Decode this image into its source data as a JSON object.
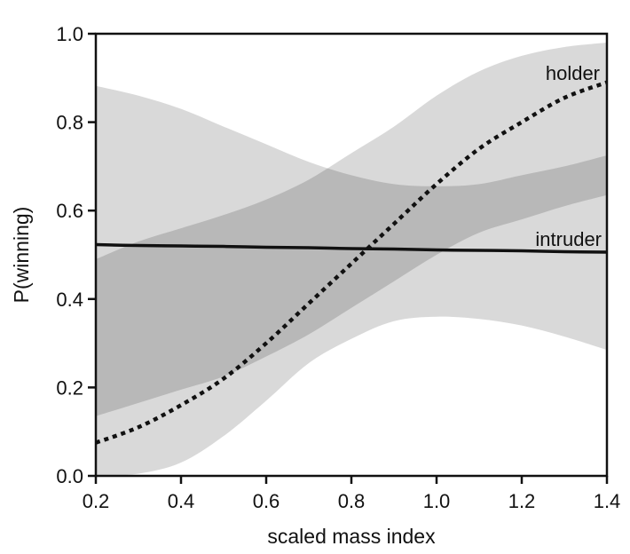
{
  "chart_data": {
    "type": "line",
    "xlabel": "scaled mass index",
    "ylabel": "P(winning)",
    "xlim": [
      0.2,
      1.4
    ],
    "ylim": [
      0.0,
      1.0
    ],
    "xticks": [
      "0.2",
      "0.4",
      "0.6",
      "0.8",
      "1.0",
      "1.2",
      "1.4"
    ],
    "yticks": [
      "0.0",
      "0.2",
      "0.4",
      "0.6",
      "0.8",
      "1.0"
    ],
    "grid": false,
    "band_color": "#d9d9d9",
    "band_overlap_color": "#b3b3b3",
    "line_color": "#111111",
    "series": [
      {
        "name": "holder",
        "style": "dotted",
        "x": [
          0.2,
          0.3,
          0.4,
          0.5,
          0.6,
          0.7,
          0.8,
          0.9,
          1.0,
          1.1,
          1.2,
          1.3,
          1.4
        ],
        "y": [
          0.075,
          0.11,
          0.16,
          0.22,
          0.3,
          0.39,
          0.48,
          0.57,
          0.66,
          0.74,
          0.8,
          0.855,
          0.89
        ],
        "ci_lower": [
          0.0,
          0.005,
          0.03,
          0.09,
          0.17,
          0.255,
          0.31,
          0.35,
          0.36,
          0.355,
          0.34,
          0.315,
          0.285
        ],
        "ci_upper": [
          0.49,
          0.53,
          0.56,
          0.59,
          0.625,
          0.67,
          0.73,
          0.79,
          0.86,
          0.915,
          0.95,
          0.97,
          0.98
        ]
      },
      {
        "name": "intruder",
        "style": "solid",
        "x": [
          0.2,
          0.3,
          0.4,
          0.5,
          0.6,
          0.7,
          0.8,
          0.9,
          1.0,
          1.1,
          1.2,
          1.3,
          1.4
        ],
        "y": [
          0.523,
          0.521,
          0.52,
          0.519,
          0.517,
          0.516,
          0.514,
          0.513,
          0.511,
          0.51,
          0.509,
          0.507,
          0.506
        ],
        "ci_lower": [
          0.135,
          0.165,
          0.195,
          0.225,
          0.27,
          0.32,
          0.38,
          0.44,
          0.5,
          0.55,
          0.58,
          0.61,
          0.635
        ],
        "ci_upper": [
          0.882,
          0.86,
          0.83,
          0.79,
          0.75,
          0.71,
          0.68,
          0.66,
          0.655,
          0.66,
          0.68,
          0.7,
          0.725
        ]
      }
    ]
  }
}
